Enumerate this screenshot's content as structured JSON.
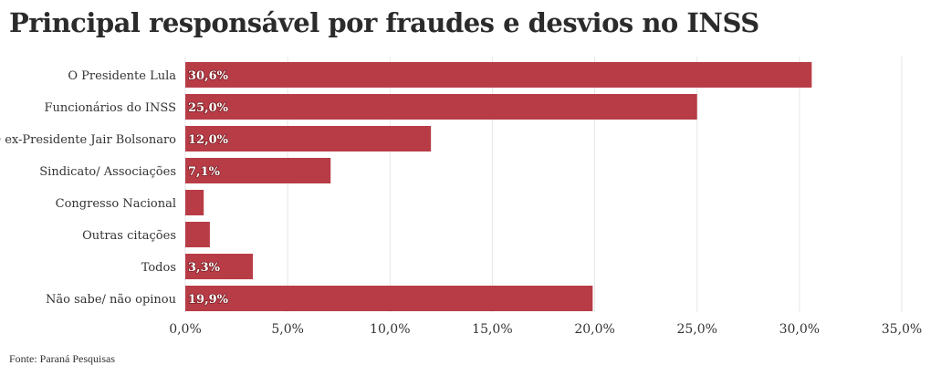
{
  "chart_data": {
    "type": "bar",
    "orientation": "horizontal",
    "title": "Principal responsável por fraudes e desvios no INSS",
    "source": "Fonte: Paraná Pesquisas",
    "categories": [
      "O Presidente Lula",
      "Funcionários do INSS",
      "O ex-Presidente Jair Bolsonaro",
      "Sindicato/ Associações",
      "Congresso Nacional",
      "Outras citações",
      "Todos",
      "Não sabe/ não opinou"
    ],
    "values": [
      30.6,
      25.0,
      12.0,
      7.1,
      0.9,
      1.2,
      3.3,
      19.9
    ],
    "data_labels": [
      "30,6%",
      "25,0%",
      "12,0%",
      "7,1%",
      "",
      "",
      "3,3%",
      "19,9%"
    ],
    "xlim": [
      0,
      35
    ],
    "x_ticks": [
      0,
      5,
      10,
      15,
      20,
      25,
      30,
      35
    ],
    "x_tick_labels": [
      "0,0%",
      "5,0%",
      "10,0%",
      "15,0%",
      "20,0%",
      "25,0%",
      "30,0%",
      "35,0%"
    ],
    "grid": true,
    "bar_color": "#b83c46"
  }
}
